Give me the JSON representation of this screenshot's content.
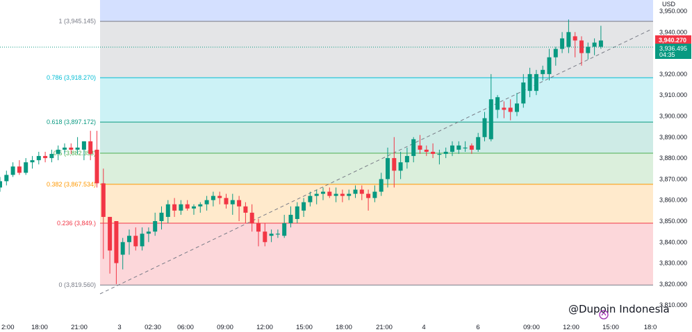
{
  "price_axis": {
    "currency": "USD",
    "ticks": [
      "3,950.000",
      "3,940.000",
      "3,930.000",
      "3,920.000",
      "3,910.000",
      "3,900.000",
      "3,890.000",
      "3,880.000",
      "3,870.000",
      "3,860.000",
      "3,850.000",
      "3,840.000",
      "3,830.000",
      "3,820.000",
      "3,810.000"
    ]
  },
  "time_axis": {
    "ticks": [
      "2:00",
      "18:00",
      "21:00",
      "3",
      "02:30",
      "06:00",
      "09:00",
      "12:00",
      "15:00",
      "18:00",
      "21:00",
      "4",
      "6",
      "09:00",
      "12:00",
      "15:00",
      "18:0"
    ]
  },
  "price_tags": {
    "high_value": "3,940.270",
    "current_value": "3,936.495",
    "countdown": "04:35"
  },
  "fib_levels": [
    {
      "label": "1 (3,945.145)",
      "level": 1,
      "price": 3945.145,
      "color": "#787b86"
    },
    {
      "label": "0.786 (3,918.270)",
      "level": 0.786,
      "price": 3918.27,
      "color": "#00bcd4"
    },
    {
      "label": "0.618 (3,897.172)",
      "level": 0.618,
      "price": 3897.172,
      "color": "#089981"
    },
    {
      "label": "0.5 (3,882.353)",
      "level": 0.5,
      "price": 3882.353,
      "color": "#4caf50"
    },
    {
      "label": "0.382 (3,867.534)",
      "level": 0.382,
      "price": 3867.534,
      "color": "#ff9800"
    },
    {
      "label": "0.236 (3,849.)",
      "level": 0.236,
      "price": 3849.0,
      "color": "#f23645"
    },
    {
      "label": "0 (3,819.560)",
      "level": 0,
      "price": 3819.56,
      "color": "#787b86"
    }
  ],
  "watermark": "@Dupoin Indonesia",
  "colors": {
    "up": "#089981",
    "down": "#f23645",
    "zone_top": "#2962ff",
    "zone_0786": "#00bcd4",
    "zone_0618": "#089981",
    "zone_05": "#4caf50",
    "zone_0382": "#ff9800",
    "zone_0236": "#f23645",
    "zone_1": "#787b86"
  },
  "chart_data": {
    "type": "candlestick",
    "y_range": [
      3806,
      3955
    ],
    "series": [
      {
        "o": 3866,
        "h": 3871,
        "l": 3864,
        "c": 3869
      },
      {
        "o": 3869,
        "h": 3874,
        "l": 3867,
        "c": 3872
      },
      {
        "o": 3872,
        "h": 3878,
        "l": 3871,
        "c": 3876
      },
      {
        "o": 3876,
        "h": 3879,
        "l": 3872,
        "c": 3873
      },
      {
        "o": 3873,
        "h": 3880,
        "l": 3872,
        "c": 3878
      },
      {
        "o": 3878,
        "h": 3881,
        "l": 3875,
        "c": 3879
      },
      {
        "o": 3879,
        "h": 3883,
        "l": 3877,
        "c": 3881
      },
      {
        "o": 3881,
        "h": 3883,
        "l": 3878,
        "c": 3880
      },
      {
        "o": 3880,
        "h": 3884,
        "l": 3878,
        "c": 3882
      },
      {
        "o": 3882,
        "h": 3886,
        "l": 3879,
        "c": 3884
      },
      {
        "o": 3884,
        "h": 3887,
        "l": 3882,
        "c": 3885
      },
      {
        "o": 3885,
        "h": 3887,
        "l": 3882,
        "c": 3884
      },
      {
        "o": 3884,
        "h": 3890,
        "l": 3882,
        "c": 3885
      },
      {
        "o": 3884,
        "h": 3888,
        "l": 3879,
        "c": 3888
      },
      {
        "o": 3888,
        "h": 3893,
        "l": 3879,
        "c": 3882
      },
      {
        "o": 3884,
        "h": 3893,
        "l": 3866,
        "c": 3868
      },
      {
        "o": 3868,
        "h": 3875,
        "l": 3832,
        "c": 3852
      },
      {
        "o": 3852,
        "h": 3852,
        "l": 3825,
        "c": 3836
      },
      {
        "o": 3850,
        "h": 3850,
        "l": 3820,
        "c": 3830
      },
      {
        "o": 3834,
        "h": 3842,
        "l": 3827,
        "c": 3840
      },
      {
        "o": 3840,
        "h": 3846,
        "l": 3834,
        "c": 3843
      },
      {
        "o": 3843,
        "h": 3847,
        "l": 3836,
        "c": 3838
      },
      {
        "o": 3838,
        "h": 3847,
        "l": 3836,
        "c": 3844
      },
      {
        "o": 3844,
        "h": 3847,
        "l": 3840,
        "c": 3845
      },
      {
        "o": 3845,
        "h": 3854,
        "l": 3843,
        "c": 3850
      },
      {
        "o": 3850,
        "h": 3857,
        "l": 3846,
        "c": 3854
      },
      {
        "o": 3852,
        "h": 3860,
        "l": 3849,
        "c": 3858
      },
      {
        "o": 3858,
        "h": 3861,
        "l": 3852,
        "c": 3855
      },
      {
        "o": 3855,
        "h": 3860,
        "l": 3853,
        "c": 3858
      },
      {
        "o": 3858,
        "h": 3860,
        "l": 3855,
        "c": 3856
      },
      {
        "o": 3856,
        "h": 3858,
        "l": 3853,
        "c": 3857
      },
      {
        "o": 3857,
        "h": 3859,
        "l": 3854,
        "c": 3858
      },
      {
        "o": 3858,
        "h": 3862,
        "l": 3855,
        "c": 3860
      },
      {
        "o": 3860,
        "h": 3864,
        "l": 3857,
        "c": 3862
      },
      {
        "o": 3862,
        "h": 3864,
        "l": 3858,
        "c": 3861
      },
      {
        "o": 3861,
        "h": 3863,
        "l": 3856,
        "c": 3858
      },
      {
        "o": 3858,
        "h": 3863,
        "l": 3853,
        "c": 3860
      },
      {
        "o": 3860,
        "h": 3862,
        "l": 3850,
        "c": 3857
      },
      {
        "o": 3857,
        "h": 3859,
        "l": 3849,
        "c": 3854
      },
      {
        "o": 3854,
        "h": 3858,
        "l": 3845,
        "c": 3849
      },
      {
        "o": 3849,
        "h": 3851,
        "l": 3838,
        "c": 3845
      },
      {
        "o": 3845,
        "h": 3849,
        "l": 3838,
        "c": 3840
      },
      {
        "o": 3843,
        "h": 3846,
        "l": 3840,
        "c": 3844
      },
      {
        "o": 3844,
        "h": 3846,
        "l": 3842,
        "c": 3844
      },
      {
        "o": 3843,
        "h": 3853,
        "l": 3842,
        "c": 3849
      },
      {
        "o": 3849,
        "h": 3857,
        "l": 3847,
        "c": 3853
      },
      {
        "o": 3851,
        "h": 3859,
        "l": 3849,
        "c": 3857
      },
      {
        "o": 3855,
        "h": 3861,
        "l": 3852,
        "c": 3859
      },
      {
        "o": 3859,
        "h": 3864,
        "l": 3857,
        "c": 3862
      },
      {
        "o": 3862,
        "h": 3865,
        "l": 3858,
        "c": 3863
      },
      {
        "o": 3863,
        "h": 3866,
        "l": 3860,
        "c": 3864
      },
      {
        "o": 3864,
        "h": 3866,
        "l": 3861,
        "c": 3862
      },
      {
        "o": 3862,
        "h": 3866,
        "l": 3859,
        "c": 3863
      },
      {
        "o": 3863,
        "h": 3865,
        "l": 3859,
        "c": 3862
      },
      {
        "o": 3862,
        "h": 3865,
        "l": 3860,
        "c": 3863
      },
      {
        "o": 3863,
        "h": 3867,
        "l": 3861,
        "c": 3865
      },
      {
        "o": 3865,
        "h": 3867,
        "l": 3860,
        "c": 3863
      },
      {
        "o": 3863,
        "h": 3865,
        "l": 3855,
        "c": 3861
      },
      {
        "o": 3861,
        "h": 3867,
        "l": 3859,
        "c": 3864
      },
      {
        "o": 3864,
        "h": 3873,
        "l": 3862,
        "c": 3870
      },
      {
        "o": 3870,
        "h": 3885,
        "l": 3866,
        "c": 3880
      },
      {
        "o": 3880,
        "h": 3890,
        "l": 3866,
        "c": 3874
      },
      {
        "o": 3874,
        "h": 3883,
        "l": 3870,
        "c": 3878
      },
      {
        "o": 3878,
        "h": 3885,
        "l": 3875,
        "c": 3881
      },
      {
        "o": 3881,
        "h": 3890,
        "l": 3878,
        "c": 3889
      },
      {
        "o": 3886,
        "h": 3891,
        "l": 3882,
        "c": 3884
      },
      {
        "o": 3884,
        "h": 3886,
        "l": 3881,
        "c": 3883
      },
      {
        "o": 3883,
        "h": 3887,
        "l": 3880,
        "c": 3882
      },
      {
        "o": 3882,
        "h": 3884,
        "l": 3877,
        "c": 3882
      },
      {
        "o": 3882,
        "h": 3885,
        "l": 3880,
        "c": 3883
      },
      {
        "o": 3883,
        "h": 3888,
        "l": 3881,
        "c": 3886
      },
      {
        "o": 3884,
        "h": 3888,
        "l": 3882,
        "c": 3886
      },
      {
        "o": 3885,
        "h": 3888,
        "l": 3883,
        "c": 3885
      },
      {
        "o": 3886,
        "h": 3887,
        "l": 3882,
        "c": 3884
      },
      {
        "o": 3884,
        "h": 3892,
        "l": 3883,
        "c": 3890
      },
      {
        "o": 3890,
        "h": 3902,
        "l": 3888,
        "c": 3899
      },
      {
        "o": 3889,
        "h": 3920,
        "l": 3888,
        "c": 3908
      },
      {
        "o": 3903,
        "h": 3910,
        "l": 3899,
        "c": 3909
      },
      {
        "o": 3904,
        "h": 3907,
        "l": 3899,
        "c": 3903
      },
      {
        "o": 3904,
        "h": 3908,
        "l": 3898,
        "c": 3902
      },
      {
        "o": 3902,
        "h": 3911,
        "l": 3900,
        "c": 3906
      },
      {
        "o": 3906,
        "h": 3920,
        "l": 3904,
        "c": 3916
      },
      {
        "o": 3912,
        "h": 3923,
        "l": 3909,
        "c": 3920
      },
      {
        "o": 3912,
        "h": 3922,
        "l": 3910,
        "c": 3920
      },
      {
        "o": 3920,
        "h": 3924,
        "l": 3917,
        "c": 3922
      },
      {
        "o": 3920,
        "h": 3932,
        "l": 3917,
        "c": 3928
      },
      {
        "o": 3928,
        "h": 3933,
        "l": 3924,
        "c": 3932
      },
      {
        "o": 3932,
        "h": 3940,
        "l": 3930,
        "c": 3937
      },
      {
        "o": 3933,
        "h": 3946,
        "l": 3930,
        "c": 3940
      },
      {
        "o": 3938,
        "h": 3940,
        "l": 3928,
        "c": 3936
      },
      {
        "o": 3936,
        "h": 3938,
        "l": 3924,
        "c": 3930
      },
      {
        "o": 3930,
        "h": 3935,
        "l": 3927,
        "c": 3933
      },
      {
        "o": 3933,
        "h": 3937,
        "l": 3929,
        "c": 3935
      },
      {
        "o": 3933,
        "h": 3943,
        "l": 3932,
        "c": 3936
      }
    ]
  }
}
